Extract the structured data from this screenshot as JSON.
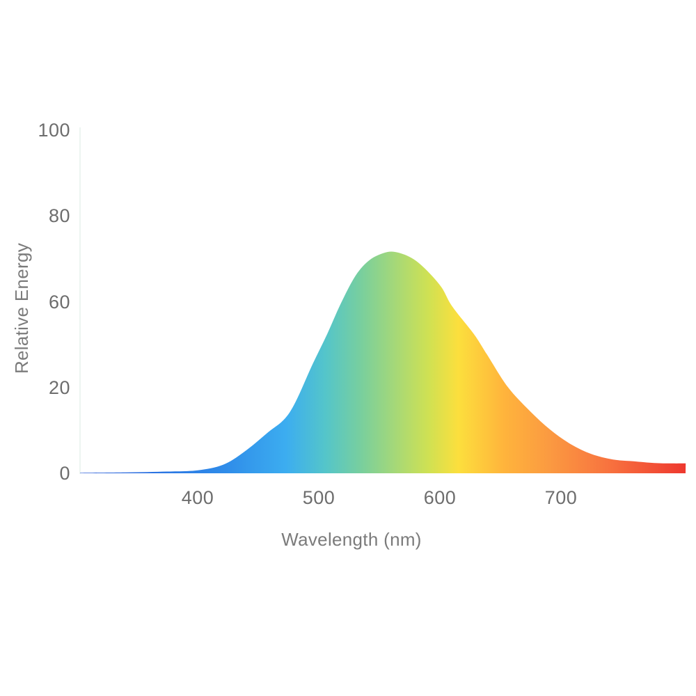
{
  "chart_data": {
    "type": "area",
    "title": "",
    "xlabel": "Wavelength (nm)",
    "ylabel": "Relative Energy",
    "x_tick_labels": [
      400,
      500,
      600,
      700
    ],
    "y_tick_labels": [
      100,
      80,
      60,
      20,
      0
    ],
    "x_range_nm": [
      303,
      803
    ],
    "ylim": [
      0,
      100
    ],
    "grid": false,
    "legend": false,
    "background": "#ffffff",
    "text_color": "#6d6d6d",
    "axis_line_color": "#edf5f1",
    "peak": {
      "wavelength_nm": 563,
      "relative_energy": 72
    },
    "curve_points": [
      [
        303,
        0.1
      ],
      [
        340,
        0.2
      ],
      [
        375,
        0.4
      ],
      [
        400,
        0.7
      ],
      [
        421,
        2.0
      ],
      [
        438,
        4.9
      ],
      [
        457,
        9.3
      ],
      [
        476,
        14.2
      ],
      [
        495,
        31.0
      ],
      [
        507,
        45.0
      ],
      [
        518,
        58.9
      ],
      [
        530,
        65.9
      ],
      [
        541,
        69.5
      ],
      [
        553,
        71.3
      ],
      [
        563,
        71.6
      ],
      [
        576,
        70.3
      ],
      [
        587,
        67.9
      ],
      [
        601,
        63.5
      ],
      [
        610,
        58.0
      ],
      [
        628,
        45.0
      ],
      [
        639,
        35.3
      ],
      [
        656,
        20.3
      ],
      [
        674,
        14.6
      ],
      [
        691,
        10.2
      ],
      [
        708,
        6.8
      ],
      [
        725,
        4.5
      ],
      [
        743,
        3.2
      ],
      [
        760,
        2.8
      ],
      [
        777,
        2.4
      ],
      [
        791,
        2.3
      ],
      [
        803,
        2.3
      ]
    ],
    "spectrum_gradient": [
      {
        "offset": 0.0,
        "color": "#2d5ed8"
      },
      {
        "offset": 0.12,
        "color": "#2b73e2"
      },
      {
        "offset": 0.24,
        "color": "#2f8ce9"
      },
      {
        "offset": 0.34,
        "color": "#3cadf0"
      },
      {
        "offset": 0.405,
        "color": "#54c5ca"
      },
      {
        "offset": 0.465,
        "color": "#79cf9d"
      },
      {
        "offset": 0.52,
        "color": "#a5d878"
      },
      {
        "offset": 0.575,
        "color": "#cfe153"
      },
      {
        "offset": 0.625,
        "color": "#fcdf3d"
      },
      {
        "offset": 0.7,
        "color": "#ffb43c"
      },
      {
        "offset": 0.775,
        "color": "#fb9a41"
      },
      {
        "offset": 0.87,
        "color": "#f8743f"
      },
      {
        "offset": 1.0,
        "color": "#ee382f"
      }
    ]
  }
}
